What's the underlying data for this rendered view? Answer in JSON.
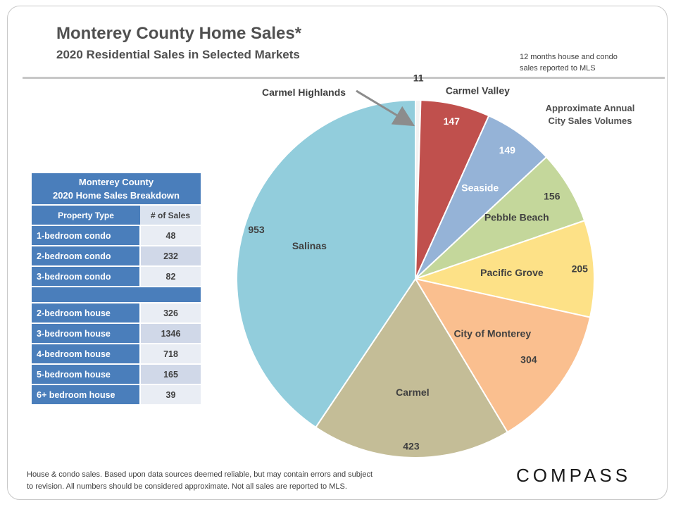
{
  "header": {
    "title": "Monterey County Home Sales*",
    "subtitle": "2020 Residential Sales in Selected Markets",
    "note_line1": "12 months house and condo",
    "note_line2": "sales reported to MLS"
  },
  "city_volumes_label_line1": "Approximate Annual",
  "city_volumes_label_line2": "City Sales Volumes",
  "callout_label": "Carmel Highlands",
  "table": {
    "title_line1": "Monterey County",
    "title_line2": "2020 Home Sales Breakdown",
    "col_type": "Property Type",
    "col_sales": "# of Sales",
    "condos": [
      {
        "type": "1-bedroom condo",
        "sales": "48"
      },
      {
        "type": "2-bedroom condo",
        "sales": "232"
      },
      {
        "type": "3-bedroom condo",
        "sales": "82"
      }
    ],
    "houses": [
      {
        "type": "2-bedroom house",
        "sales": "326"
      },
      {
        "type": "3-bedroom house",
        "sales": "1346"
      },
      {
        "type": "4-bedroom house",
        "sales": "718"
      },
      {
        "type": "5-bedroom house",
        "sales": "165"
      },
      {
        "type": "6+ bedroom house",
        "sales": "39"
      }
    ]
  },
  "chart_data": {
    "type": "pie",
    "title": "2020 Residential Sales in Selected Markets",
    "slices": [
      {
        "label": "Carmel Highlands",
        "value": 11,
        "color": "#f2f2f2"
      },
      {
        "label": "Carmel Valley",
        "value": 147,
        "color": "#c0504d"
      },
      {
        "label": "Seaside",
        "value": 149,
        "color": "#95b3d7"
      },
      {
        "label": "Pebble Beach",
        "value": 156,
        "color": "#c4d79b"
      },
      {
        "label": "Pacific Grove",
        "value": 205,
        "color": "#fde187"
      },
      {
        "label": "City of Monterey",
        "value": 304,
        "color": "#fabf8f"
      },
      {
        "label": "Carmel",
        "value": 423,
        "color": "#c4bd97"
      },
      {
        "label": "Salinas",
        "value": 953,
        "color": "#92cddc"
      }
    ]
  },
  "footer": {
    "line1": "House & condo sales. Based upon data sources deemed reliable, but may contain errors and subject",
    "line2": "to revision. All numbers should be considered approximate. Not all sales are reported to MLS."
  },
  "brand": "COMPASS"
}
